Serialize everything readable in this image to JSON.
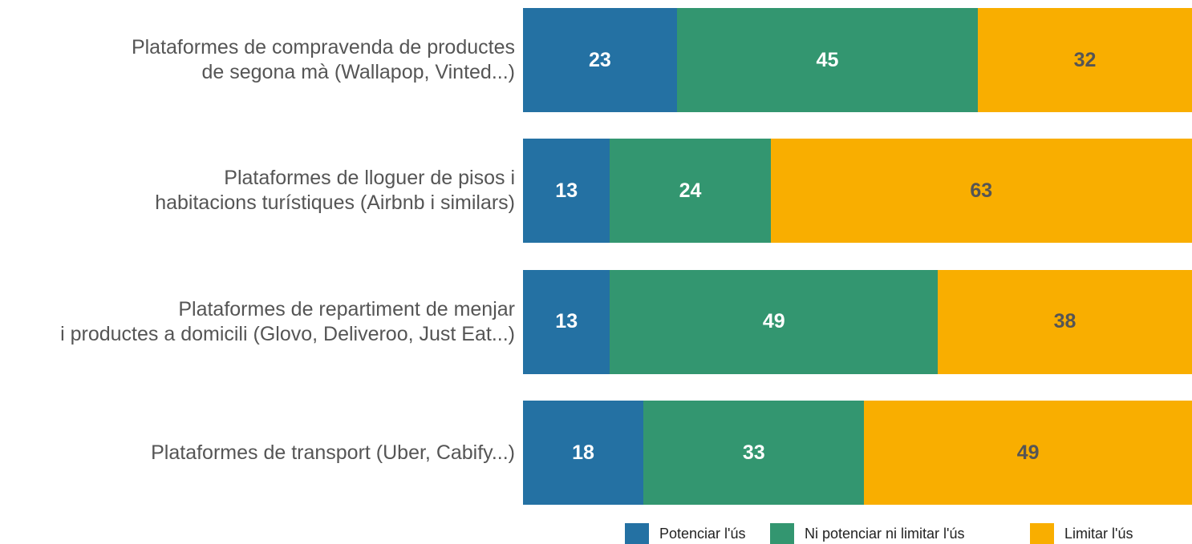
{
  "chart_data": {
    "type": "stacked-barh",
    "categories": [
      "Plataformes de compravenda de productes\nde segona mà (Wallapop, Vinted...)",
      "Plataformes de lloguer de pisos i\nhabitacions turístiques (Airbnb i similars)",
      "Plataformes de repartiment de menjar\ni productes a domicili (Glovo, Deliveroo, Just Eat...)",
      "Plataformes de transport (Uber, Cabify...)"
    ],
    "series": [
      {
        "name": "Potenciar l'ús",
        "color": "#2471a3",
        "label_color": "#ffffff",
        "values": [
          23,
          13,
          13,
          18
        ]
      },
      {
        "name": "Ni potenciar ni limitar l'ús",
        "color": "#339670",
        "label_color": "#ffffff",
        "values": [
          45,
          24,
          49,
          33
        ]
      },
      {
        "name": "Limitar l'ús",
        "color": "#f9ae00",
        "label_color": "#555555",
        "values": [
          32,
          63,
          38,
          49
        ]
      }
    ],
    "xlim": [
      0,
      100
    ],
    "legend": "bottom"
  }
}
